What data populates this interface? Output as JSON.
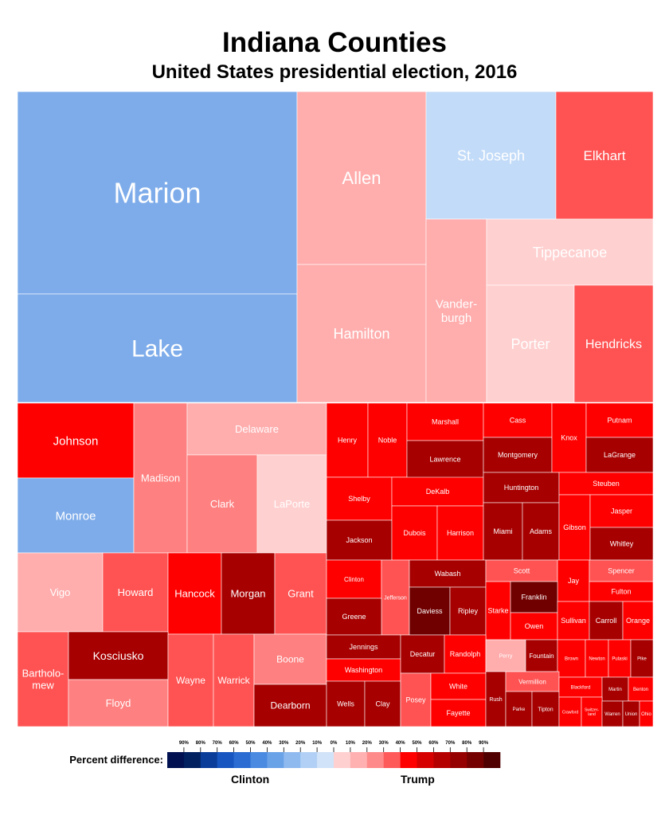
{
  "chart_data": {
    "type": "treemap",
    "title": "Indiana Counties",
    "subtitle": "United States presidential election, 2016",
    "legend": {
      "title": "Percent difference:",
      "ticks": [
        "90%",
        "80%",
        "70%",
        "60%",
        "50%",
        "40%",
        "30%",
        "20%",
        "10%",
        "0%",
        "10%",
        "20%",
        "30%",
        "40%",
        "50%",
        "60%",
        "70%",
        "80%",
        "90%"
      ],
      "left_label": "Clinton",
      "right_label": "Trump",
      "colors": [
        "#001050",
        "#002060",
        "#0a3d9a",
        "#1755c0",
        "#2a6cd2",
        "#4a8ae0",
        "#6aa2e8",
        "#8fbaef",
        "#b2d0f5",
        "#d0e3f8",
        "#ffd0d0",
        "#ffb0b0",
        "#ff8a8a",
        "#ff5a5a",
        "#ff0000",
        "#d60000",
        "#b50000",
        "#950000",
        "#750000",
        "#500000"
      ]
    },
    "counties": [
      {
        "name": "Marion",
        "winner": "Clinton",
        "color": "#7eacea"
      },
      {
        "name": "Lake",
        "winner": "Clinton",
        "color": "#7eacea"
      },
      {
        "name": "Allen",
        "winner": "Trump",
        "color": "#ffadad"
      },
      {
        "name": "Hamilton",
        "winner": "Trump",
        "color": "#ffadad"
      },
      {
        "name": "St. Joseph",
        "winner": "Clinton",
        "color": "#c2dbf8"
      },
      {
        "name": "Elkhart",
        "winner": "Trump",
        "color": "#ff5252"
      },
      {
        "name": "Vander-\nburgh",
        "winner": "Trump",
        "color": "#ffadad"
      },
      {
        "name": "Tippecanoe",
        "winner": "Trump",
        "color": "#ffd0d0"
      },
      {
        "name": "Porter",
        "winner": "Trump",
        "color": "#ffd0d0"
      },
      {
        "name": "Hendricks",
        "winner": "Trump",
        "color": "#ff5252"
      },
      {
        "name": "Johnson",
        "winner": "Trump",
        "color": "#ff0000"
      },
      {
        "name": "Monroe",
        "winner": "Clinton",
        "color": "#7eacea"
      },
      {
        "name": "Madison",
        "winner": "Trump",
        "color": "#ff8080"
      },
      {
        "name": "Delaware",
        "winner": "Trump",
        "color": "#ffadad"
      },
      {
        "name": "Clark",
        "winner": "Trump",
        "color": "#ff8080"
      },
      {
        "name": "LaPorte",
        "winner": "Trump",
        "color": "#ffd0d0"
      },
      {
        "name": "Vigo",
        "winner": "Trump",
        "color": "#ffadad"
      },
      {
        "name": "Howard",
        "winner": "Trump",
        "color": "#ff5252"
      },
      {
        "name": "Hancock",
        "winner": "Trump",
        "color": "#ff0000"
      },
      {
        "name": "Morgan",
        "winner": "Trump",
        "color": "#a60000"
      },
      {
        "name": "Grant",
        "winner": "Trump",
        "color": "#ff5252"
      },
      {
        "name": "Bartholo-\nmew",
        "winner": "Trump",
        "color": "#ff5252"
      },
      {
        "name": "Kosciusko",
        "winner": "Trump",
        "color": "#a60000"
      },
      {
        "name": "Floyd",
        "winner": "Trump",
        "color": "#ff8080"
      },
      {
        "name": "Wayne",
        "winner": "Trump",
        "color": "#ff5252"
      },
      {
        "name": "Warrick",
        "winner": "Trump",
        "color": "#ff5252"
      },
      {
        "name": "Boone",
        "winner": "Trump",
        "color": "#ff8080"
      },
      {
        "name": "Dearborn",
        "winner": "Trump",
        "color": "#a60000"
      },
      {
        "name": "Henry",
        "winner": "Trump",
        "color": "#ff0000"
      },
      {
        "name": "Noble",
        "winner": "Trump",
        "color": "#ff0000"
      },
      {
        "name": "Marshall",
        "winner": "Trump",
        "color": "#ff0000"
      },
      {
        "name": "Lawrence",
        "winner": "Trump",
        "color": "#a60000"
      },
      {
        "name": "Cass",
        "winner": "Trump",
        "color": "#ff0000"
      },
      {
        "name": "Montgomery",
        "winner": "Trump",
        "color": "#a60000"
      },
      {
        "name": "Knox",
        "winner": "Trump",
        "color": "#ff0000"
      },
      {
        "name": "Putnam",
        "winner": "Trump",
        "color": "#ff0000"
      },
      {
        "name": "LaGrange",
        "winner": "Trump",
        "color": "#a60000"
      },
      {
        "name": "Shelby",
        "winner": "Trump",
        "color": "#ff0000"
      },
      {
        "name": "DeKalb",
        "winner": "Trump",
        "color": "#ff0000"
      },
      {
        "name": "Huntington",
        "winner": "Trump",
        "color": "#a60000"
      },
      {
        "name": "Steuben",
        "winner": "Trump",
        "color": "#ff0000"
      },
      {
        "name": "Jackson",
        "winner": "Trump",
        "color": "#a60000"
      },
      {
        "name": "Dubois",
        "winner": "Trump",
        "color": "#ff0000"
      },
      {
        "name": "Harrison",
        "winner": "Trump",
        "color": "#ff0000"
      },
      {
        "name": "Miami",
        "winner": "Trump",
        "color": "#a60000"
      },
      {
        "name": "Adams",
        "winner": "Trump",
        "color": "#a60000"
      },
      {
        "name": "Gibson",
        "winner": "Trump",
        "color": "#ff0000"
      },
      {
        "name": "Jasper",
        "winner": "Trump",
        "color": "#ff0000"
      },
      {
        "name": "Whitley",
        "winner": "Trump",
        "color": "#a60000"
      },
      {
        "name": "Clinton",
        "winner": "Trump",
        "color": "#ff0000"
      },
      {
        "name": "Jefferson",
        "winner": "Trump",
        "color": "#ff5252"
      },
      {
        "name": "Wabash",
        "winner": "Trump",
        "color": "#a60000"
      },
      {
        "name": "Scott",
        "winner": "Trump",
        "color": "#ff5252"
      },
      {
        "name": "Jay",
        "winner": "Trump",
        "color": "#ff0000"
      },
      {
        "name": "Spencer",
        "winner": "Trump",
        "color": "#ff5252"
      },
      {
        "name": "Greene",
        "winner": "Trump",
        "color": "#a60000"
      },
      {
        "name": "Daviess",
        "winner": "Trump",
        "color": "#700000"
      },
      {
        "name": "Ripley",
        "winner": "Trump",
        "color": "#a60000"
      },
      {
        "name": "Starke",
        "winner": "Trump",
        "color": "#ff0000"
      },
      {
        "name": "Franklin",
        "winner": "Trump",
        "color": "#700000"
      },
      {
        "name": "Fulton",
        "winner": "Trump",
        "color": "#ff0000"
      },
      {
        "name": "Owen",
        "winner": "Trump",
        "color": "#ff0000"
      },
      {
        "name": "Sullivan",
        "winner": "Trump",
        "color": "#ff0000"
      },
      {
        "name": "Carroll",
        "winner": "Trump",
        "color": "#a60000"
      },
      {
        "name": "Orange",
        "winner": "Trump",
        "color": "#ff0000"
      },
      {
        "name": "Jennings",
        "winner": "Trump",
        "color": "#a60000"
      },
      {
        "name": "Washington",
        "winner": "Trump",
        "color": "#ff0000"
      },
      {
        "name": "Decatur",
        "winner": "Trump",
        "color": "#a60000"
      },
      {
        "name": "Randolph",
        "winner": "Trump",
        "color": "#ff0000"
      },
      {
        "name": "Perry",
        "winner": "Trump",
        "color": "#ffadad"
      },
      {
        "name": "Fountain",
        "winner": "Trump",
        "color": "#a60000"
      },
      {
        "name": "Brown",
        "winner": "Trump",
        "color": "#ff0000"
      },
      {
        "name": "Newton",
        "winner": "Trump",
        "color": "#ff0000"
      },
      {
        "name": "Pulaski",
        "winner": "Trump",
        "color": "#ff0000"
      },
      {
        "name": "Pike",
        "winner": "Trump",
        "color": "#a60000"
      },
      {
        "name": "Wells",
        "winner": "Trump",
        "color": "#a60000"
      },
      {
        "name": "Clay",
        "winner": "Trump",
        "color": "#a60000"
      },
      {
        "name": "Posey",
        "winner": "Trump",
        "color": "#ff5252"
      },
      {
        "name": "White",
        "winner": "Trump",
        "color": "#ff0000"
      },
      {
        "name": "Fayette",
        "winner": "Trump",
        "color": "#ff0000"
      },
      {
        "name": "Rush",
        "winner": "Trump",
        "color": "#a60000"
      },
      {
        "name": "Vermillion",
        "winner": "Trump",
        "color": "#ff5252"
      },
      {
        "name": "Parke",
        "winner": "Trump",
        "color": "#a60000"
      },
      {
        "name": "Tipton",
        "winner": "Trump",
        "color": "#a60000"
      },
      {
        "name": "Blackford",
        "winner": "Trump",
        "color": "#ff0000"
      },
      {
        "name": "Martin",
        "winner": "Trump",
        "color": "#a60000"
      },
      {
        "name": "Benton",
        "winner": "Trump",
        "color": "#ff0000"
      },
      {
        "name": "Crawford",
        "winner": "Trump",
        "color": "#ff0000"
      },
      {
        "name": "Switzer-\nland",
        "winner": "Trump",
        "color": "#ff0000"
      },
      {
        "name": "Warren",
        "winner": "Trump",
        "color": "#a60000"
      },
      {
        "name": "Union",
        "winner": "Trump",
        "color": "#a60000"
      },
      {
        "name": "Ohio",
        "winner": "Trump",
        "color": "#ff0000"
      }
    ]
  }
}
